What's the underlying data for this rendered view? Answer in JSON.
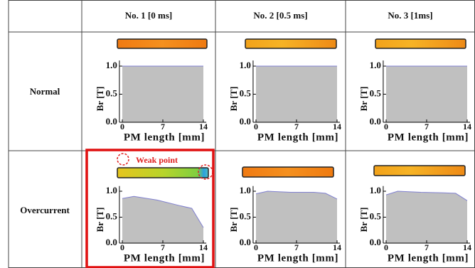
{
  "table": {
    "columns": [
      "No. 1 [0 ms]",
      "No. 2 [0.5 ms]",
      "No. 3 [1ms]"
    ],
    "rows": [
      {
        "label": "Normal",
        "cells": [
          {
            "type": "area",
            "x": [
              0,
              14
            ],
            "values": [
              1.0,
              1.0
            ],
            "xlim": [
              -0.5,
              14.5
            ],
            "ylim": [
              0,
              1.1
            ],
            "xticks": [
              0,
              7,
              14
            ],
            "yticks": [
              {
                "value": 0,
                "label": "0.0"
              },
              0.5,
              {
                "value": 1,
                "label": "1.0"
              }
            ],
            "xlabel": "PM length [mm]",
            "ylabel": "Br [T]"
          },
          {
            "type": "area",
            "x": [
              0,
              14
            ],
            "values": [
              1.0,
              1.0
            ],
            "xlim": [
              -0.5,
              14.5
            ],
            "ylim": [
              0,
              1.1
            ],
            "xticks": [
              0,
              7,
              14
            ],
            "yticks": [
              {
                "value": 0,
                "label": "0.0"
              },
              0.5,
              {
                "value": 1,
                "label": "1.0"
              }
            ],
            "xlabel": "PM length [mm]",
            "ylabel": "Br [T]"
          },
          {
            "type": "area",
            "x": [
              0,
              14
            ],
            "values": [
              1.0,
              1.0
            ],
            "xlim": [
              -0.5,
              14.5
            ],
            "ylim": [
              0,
              1.1
            ],
            "xticks": [
              0,
              7,
              14
            ],
            "yticks": [
              {
                "value": 0,
                "label": "0.0"
              },
              0.5,
              {
                "value": 1,
                "label": "1.0"
              }
            ],
            "xlabel": "PM length [mm]",
            "ylabel": "Br [T]"
          }
        ]
      },
      {
        "label": "Overcurrent",
        "cells": [
          {
            "type": "area",
            "x": [
              0,
              2,
              6,
              10,
              12,
              14
            ],
            "values": [
              0.86,
              0.9,
              0.83,
              0.72,
              0.67,
              0.3
            ],
            "xlim": [
              -0.5,
              14.5
            ],
            "ylim": [
              0,
              1.1
            ],
            "xticks": [
              0,
              7,
              14
            ],
            "yticks": [
              {
                "value": 0,
                "label": "0.0"
              },
              0.5,
              {
                "value": 1,
                "label": "1.0"
              }
            ],
            "xlabel": "PM length [mm]",
            "ylabel": "Br [T]",
            "annotation": "Weak point"
          },
          {
            "type": "area",
            "x": [
              0,
              2,
              6,
              10,
              12,
              14
            ],
            "values": [
              0.95,
              1.0,
              0.98,
              0.98,
              0.96,
              0.85
            ],
            "xlim": [
              -0.5,
              14.5
            ],
            "ylim": [
              0,
              1.1
            ],
            "xticks": [
              0,
              7,
              14
            ],
            "yticks": [
              {
                "value": 0,
                "label": "0.0"
              },
              0.5,
              {
                "value": 1,
                "label": "1.0"
              }
            ],
            "xlabel": "PM length [mm]",
            "ylabel": "Br [T]"
          },
          {
            "type": "area",
            "x": [
              0,
              2,
              6,
              10,
              12,
              14
            ],
            "values": [
              0.93,
              1.0,
              0.98,
              0.97,
              0.96,
              0.82
            ],
            "xlim": [
              -0.5,
              14.5
            ],
            "ylim": [
              0,
              1.1
            ],
            "xticks": [
              0,
              7,
              14
            ],
            "yticks": [
              {
                "value": 0,
                "label": "0.0"
              },
              0.5,
              {
                "value": 1,
                "label": "1.0"
              }
            ],
            "xlabel": "PM length [mm]",
            "ylabel": "Br [T]"
          }
        ]
      }
    ]
  }
}
